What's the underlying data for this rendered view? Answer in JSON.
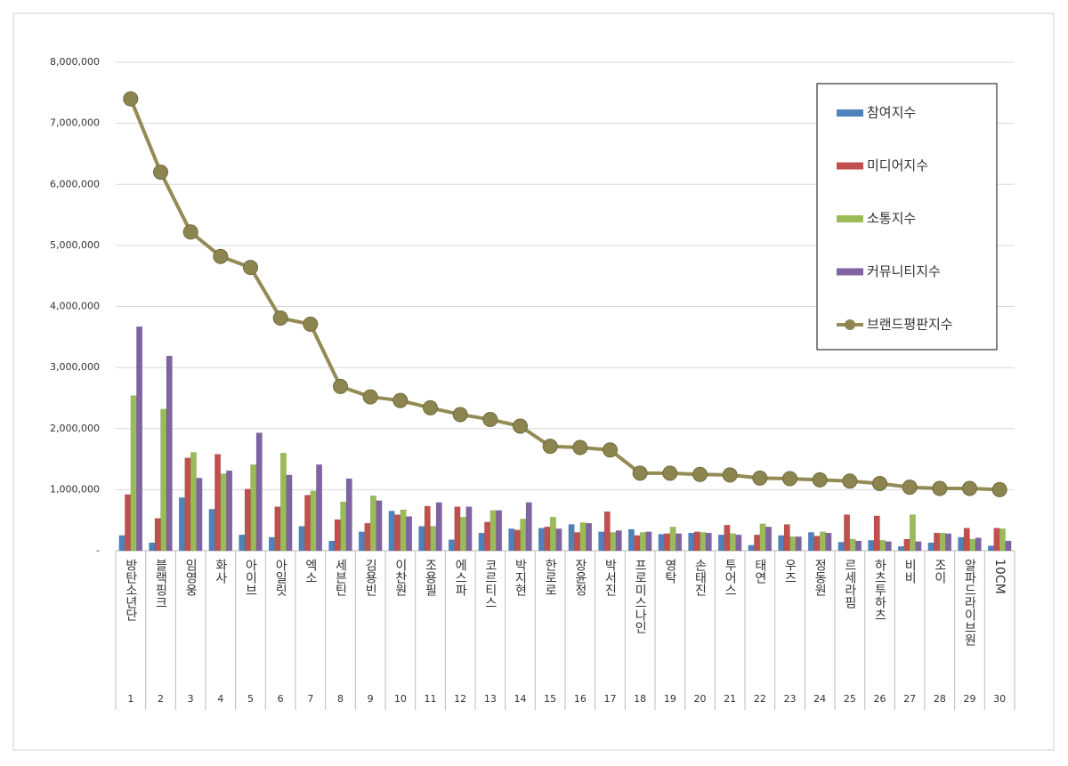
{
  "chart_data": {
    "type": "bar",
    "categories": [
      "방탄소년단",
      "블랙핑크",
      "임영웅",
      "화사",
      "아이브",
      "아일릿",
      "엑소",
      "세븐틴",
      "김용빈",
      "이찬원",
      "조용필",
      "에스파",
      "코르티스",
      "박지현",
      "한로로",
      "장윤정",
      "박서진",
      "프로미스나인",
      "영탁",
      "손태진",
      "투어스",
      "태연",
      "우즈",
      "정동원",
      "르세라핌",
      "하츠투하츠",
      "비비",
      "조이",
      "알파드라이브원",
      "10CM"
    ],
    "ranks": [
      1,
      2,
      3,
      4,
      5,
      6,
      7,
      8,
      9,
      10,
      11,
      12,
      13,
      14,
      15,
      16,
      17,
      18,
      19,
      20,
      21,
      22,
      23,
      24,
      25,
      26,
      27,
      28,
      29,
      30
    ],
    "series": [
      {
        "name": "참여지수",
        "type": "bar",
        "color": "#4f81bd",
        "values": [
          250000,
          130000,
          870000,
          680000,
          260000,
          220000,
          400000,
          160000,
          310000,
          650000,
          400000,
          180000,
          290000,
          360000,
          370000,
          430000,
          310000,
          350000,
          270000,
          290000,
          260000,
          90000,
          250000,
          300000,
          140000,
          170000,
          70000,
          130000,
          220000,
          80000
        ]
      },
      {
        "name": "미디어지수",
        "type": "bar",
        "color": "#c0504d",
        "values": [
          920000,
          530000,
          1520000,
          1580000,
          1010000,
          720000,
          910000,
          510000,
          450000,
          590000,
          730000,
          720000,
          470000,
          340000,
          390000,
          300000,
          640000,
          250000,
          280000,
          310000,
          420000,
          260000,
          430000,
          240000,
          590000,
          570000,
          190000,
          290000,
          370000,
          370000
        ]
      },
      {
        "name": "소통지수",
        "type": "bar",
        "color": "#9bbb59",
        "values": [
          2540000,
          2320000,
          1610000,
          1260000,
          1410000,
          1600000,
          980000,
          800000,
          900000,
          670000,
          400000,
          550000,
          660000,
          520000,
          550000,
          460000,
          300000,
          300000,
          390000,
          300000,
          280000,
          440000,
          230000,
          310000,
          190000,
          170000,
          590000,
          290000,
          190000,
          360000
        ]
      },
      {
        "name": "커뮤니티지수",
        "type": "bar",
        "color": "#8064a2",
        "values": [
          3670000,
          3190000,
          1190000,
          1310000,
          1930000,
          1240000,
          1410000,
          1180000,
          820000,
          560000,
          790000,
          720000,
          660000,
          790000,
          360000,
          450000,
          330000,
          310000,
          280000,
          290000,
          260000,
          390000,
          230000,
          290000,
          160000,
          150000,
          150000,
          280000,
          210000,
          160000
        ]
      },
      {
        "name": "브랜드평판지수",
        "type": "line",
        "color": "#948a54",
        "values": [
          7400000,
          6200000,
          5220000,
          4820000,
          4640000,
          3810000,
          3710000,
          2690000,
          2520000,
          2460000,
          2340000,
          2230000,
          2150000,
          2040000,
          1710000,
          1690000,
          1650000,
          1270000,
          1270000,
          1250000,
          1240000,
          1190000,
          1180000,
          1160000,
          1140000,
          1100000,
          1040000,
          1020000,
          1020000,
          1000000
        ]
      }
    ],
    "ylim": [
      0,
      8000000
    ],
    "yticks": [
      {
        "value": 0,
        "label": "-"
      },
      {
        "value": 1000000,
        "label": "1,000,000"
      },
      {
        "value": 2000000,
        "label": "2,000,000"
      },
      {
        "value": 3000000,
        "label": "3,000,000"
      },
      {
        "value": 4000000,
        "label": "4,000,000"
      },
      {
        "value": 5000000,
        "label": "5,000,000"
      },
      {
        "value": 6000000,
        "label": "6,000,000"
      },
      {
        "value": 7000000,
        "label": "7,000,000"
      },
      {
        "value": 8000000,
        "label": "8,000,000"
      }
    ],
    "grid": true,
    "legend": "upper right"
  }
}
